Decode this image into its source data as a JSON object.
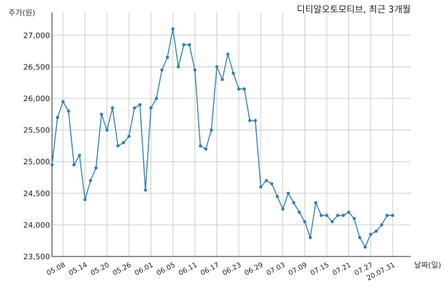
{
  "chart_data": {
    "type": "line",
    "title": "디티알오토모티브, 최근 3개월",
    "ylabel": "주가(원)",
    "xlabel": "날짜(일)",
    "ylim": [
      23500,
      27250
    ],
    "y_ticks": [
      23500,
      24000,
      24500,
      25000,
      25500,
      26000,
      26500,
      27000
    ],
    "y_tick_labels": [
      "23,500",
      "24,000",
      "24,500",
      "25,000",
      "25,500",
      "26,000",
      "26,500",
      "27,000"
    ],
    "x_tick_labels": [
      "05.08",
      "05.14",
      "05.20",
      "05.26",
      "06.01",
      "06.05",
      "06.11",
      "06.17",
      "06.23",
      "06.29",
      "07.03",
      "07.09",
      "07.15",
      "07.21",
      "07.27",
      "20.07.31"
    ],
    "grid": true,
    "color": "#2e7fb1",
    "series": [
      {
        "x": [
          "05.06",
          "05.07",
          "05.08",
          "05.11",
          "05.12",
          "05.13",
          "05.14",
          "05.15",
          "05.18",
          "05.19",
          "05.20",
          "05.21",
          "05.22",
          "05.25",
          "05.26",
          "05.27",
          "05.28",
          "05.29",
          "06.01",
          "06.02",
          "06.03",
          "06.04",
          "06.05",
          "06.08",
          "06.09",
          "06.10",
          "06.11",
          "06.12",
          "06.15",
          "06.16",
          "06.17",
          "06.18",
          "06.19",
          "06.22",
          "06.23",
          "06.24",
          "06.25",
          "06.26",
          "06.29",
          "06.30",
          "07.01",
          "07.02",
          "07.03",
          "07.06",
          "07.07",
          "07.08",
          "07.09",
          "07.10",
          "07.13",
          "07.14",
          "07.15",
          "07.16",
          "07.17",
          "07.20",
          "07.21",
          "07.22",
          "07.23",
          "07.24",
          "07.27",
          "07.28",
          "07.29",
          "07.30",
          "07.31"
        ],
        "values": [
          24950,
          25700,
          25950,
          25800,
          24950,
          25100,
          24400,
          24700,
          24900,
          25750,
          25500,
          25850,
          25250,
          25300,
          25400,
          25850,
          25900,
          24550,
          25850,
          26000,
          26450,
          26650,
          27100,
          26500,
          26850,
          26850,
          26450,
          25250,
          25200,
          25500,
          26500,
          26300,
          26700,
          26400,
          26150,
          26150,
          25650,
          25650,
          24600,
          24700,
          24650,
          24450,
          24250,
          24500,
          24350,
          24200,
          24050,
          23800,
          24350,
          24150,
          24150,
          24050,
          24150,
          24150,
          24200,
          24100,
          23800,
          23650,
          23850,
          23900,
          24000,
          24150,
          24150
        ]
      }
    ]
  }
}
